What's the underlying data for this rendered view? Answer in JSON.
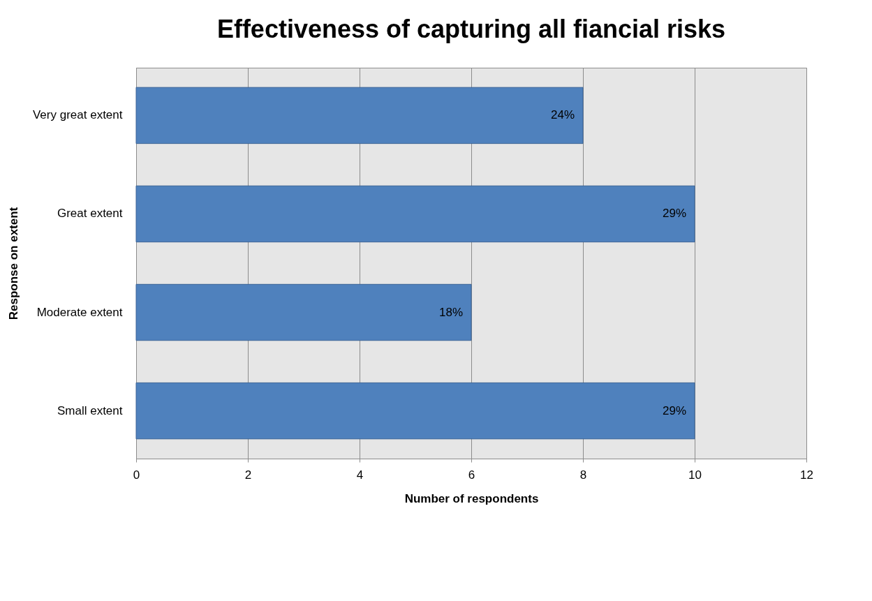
{
  "chart_data": {
    "type": "bar",
    "orientation": "horizontal",
    "title": "Effectiveness of capturing all fiancial risks",
    "xlabel": "Number of respondents",
    "ylabel": "Response on extent",
    "categories": [
      "Very great extent",
      "Great extent",
      "Moderate extent",
      "Small extent"
    ],
    "values": [
      8,
      10,
      6,
      10
    ],
    "annotations": [
      {
        "text": "24%",
        "x": 8,
        "y": "Very great extent"
      },
      {
        "text": "29%",
        "x": 10,
        "y": "Great extent"
      },
      {
        "text": "18%",
        "x": 6,
        "y": "Moderate extent"
      },
      {
        "text": "29%",
        "x": 10,
        "y": "Small extent"
      }
    ],
    "color": "#4f81bd",
    "xlim": [
      0,
      12
    ],
    "xticks": [
      0,
      2,
      4,
      6,
      8,
      10,
      12
    ],
    "grid": "x"
  }
}
